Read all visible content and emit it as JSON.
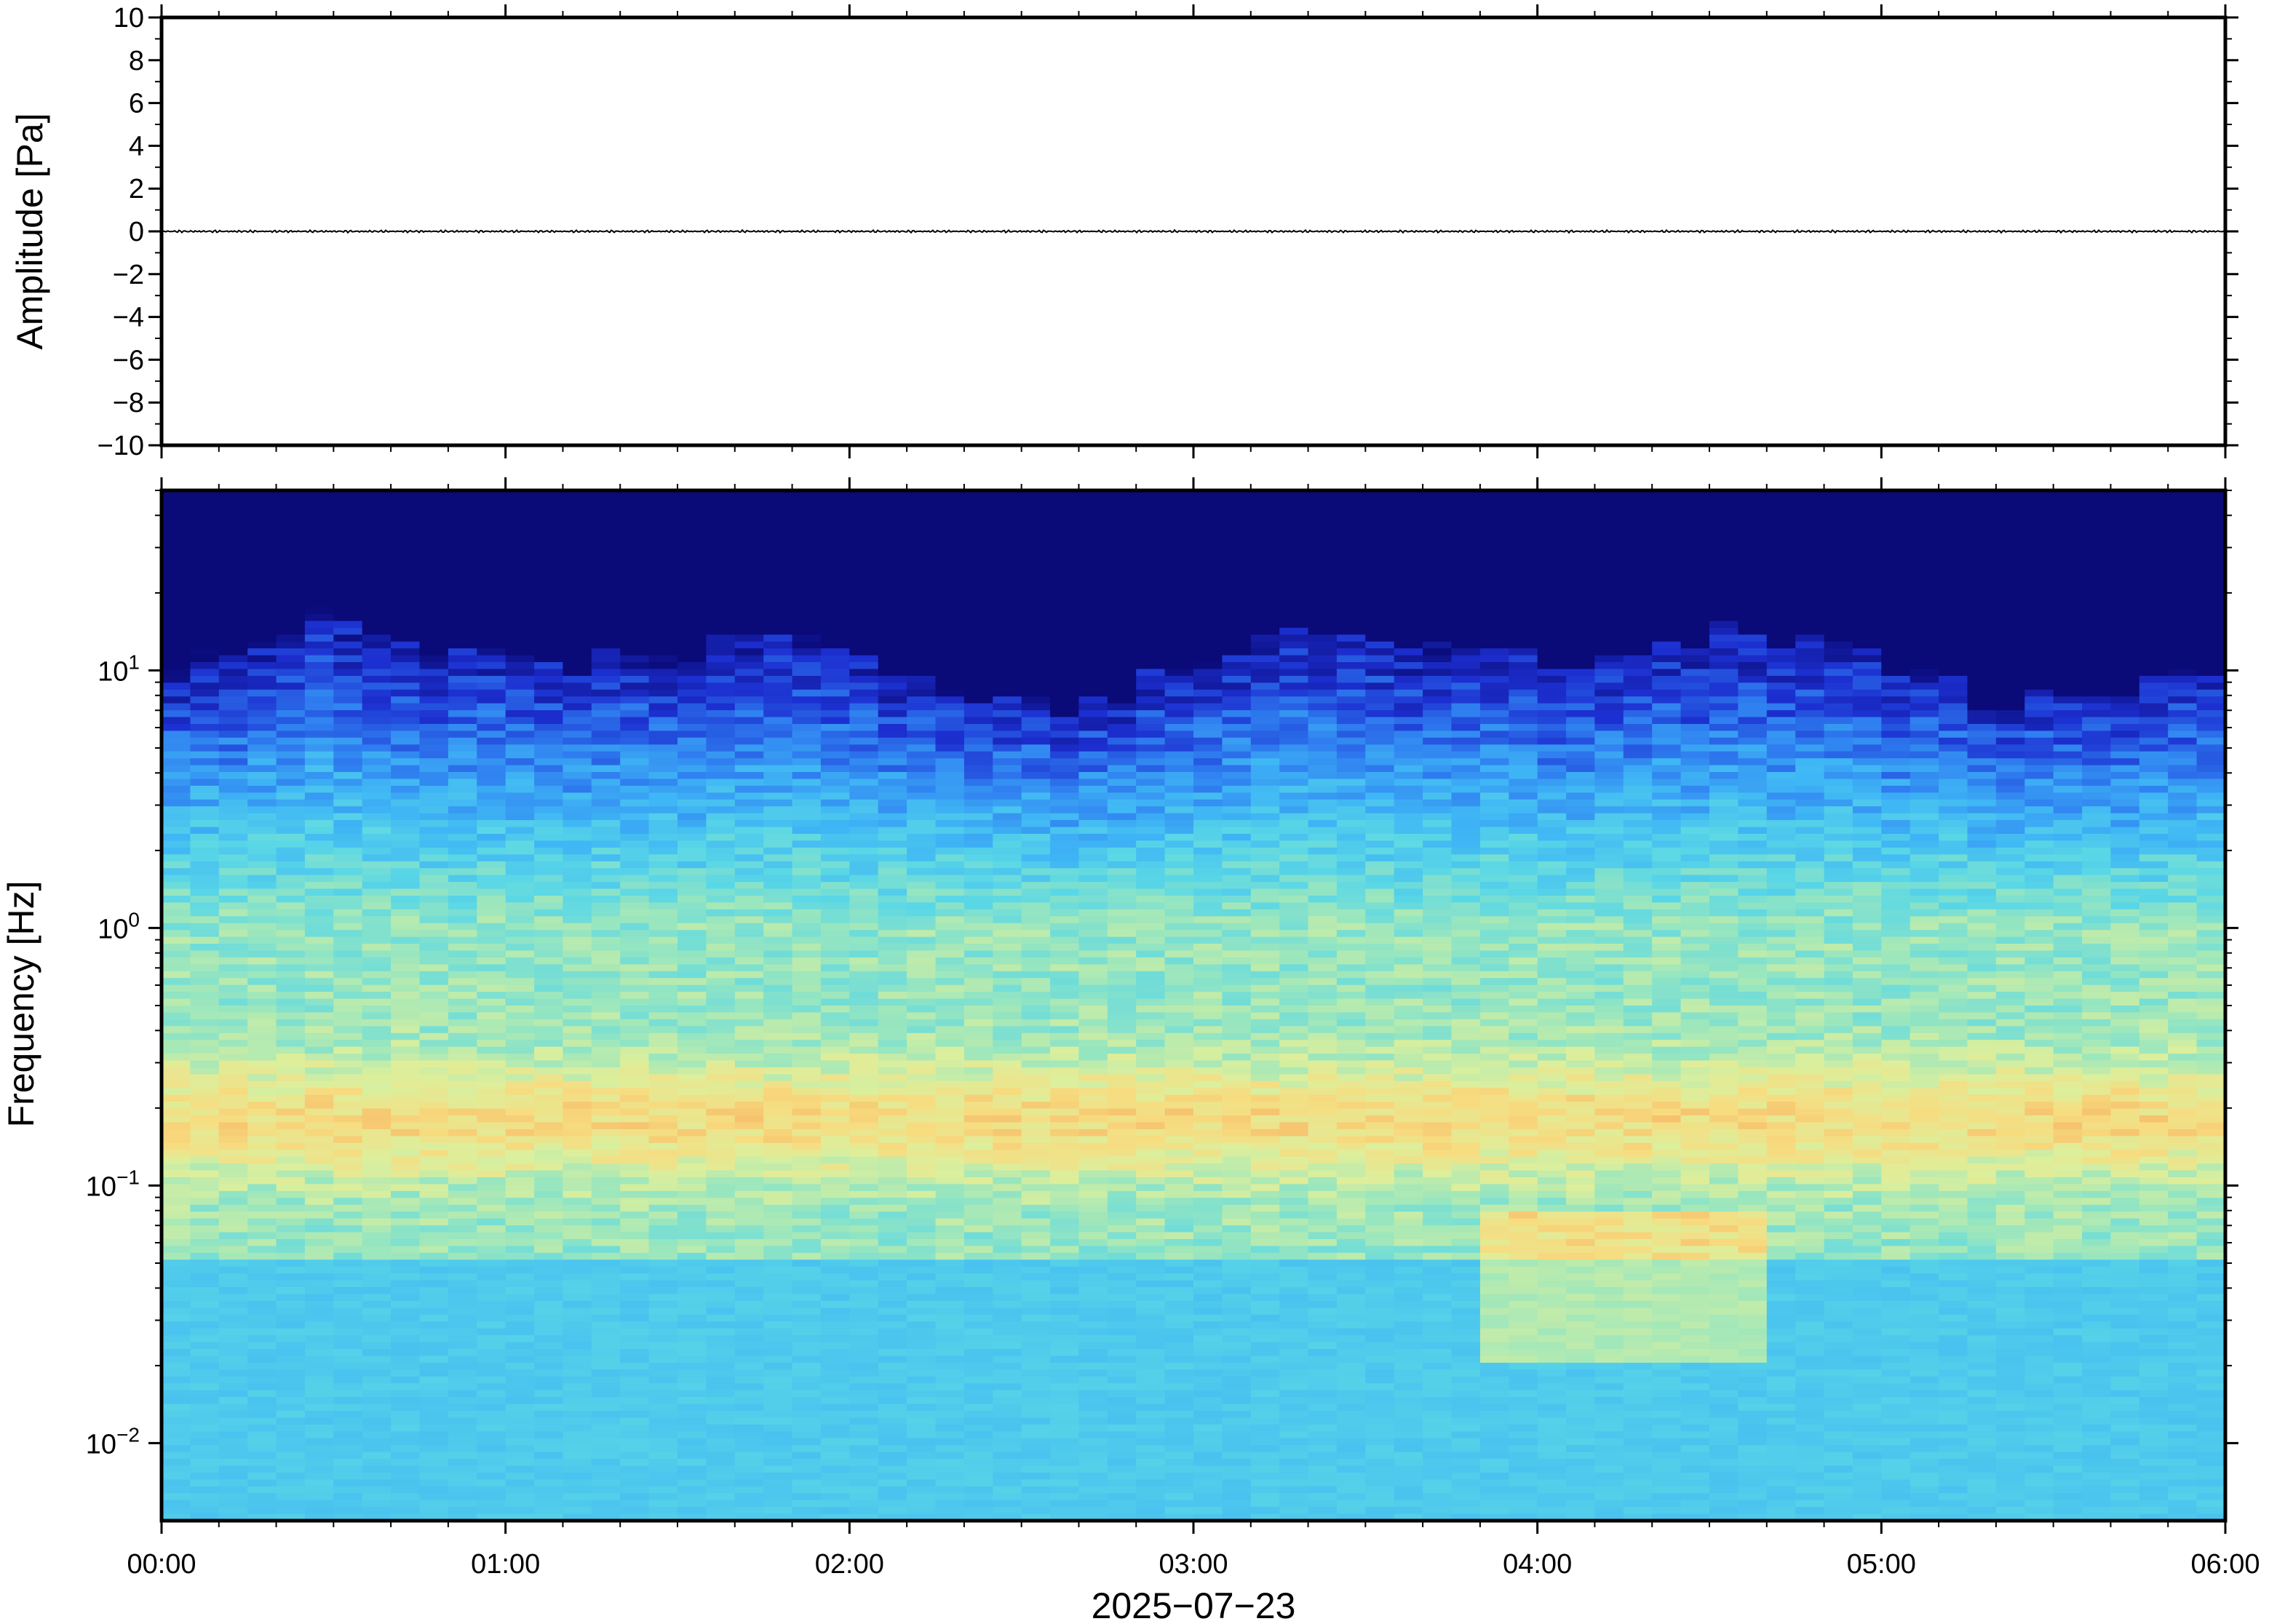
{
  "chart_data": [
    {
      "type": "line",
      "ylabel": "Amplitude [Pa]",
      "ylim": [
        -10,
        10
      ],
      "y_ticks": [
        10,
        8,
        6,
        4,
        2,
        0,
        -2,
        -4,
        -6,
        -8,
        -10
      ],
      "y_tick_labels": [
        "10",
        "8",
        "6",
        "4",
        "2",
        "0",
        "−2",
        "−4",
        "−6",
        "−8",
        "−10"
      ],
      "series": [
        {
          "color": "#000000",
          "x": [
            "00:00",
            "06:00"
          ],
          "values": [
            0,
            0
          ]
        }
      ],
      "grid": false
    },
    {
      "type": "heatmap",
      "ylabel": "Frequency [Hz]",
      "y_scale": "log",
      "ylim": [
        0.005,
        50
      ],
      "y_ticks": [
        0.01,
        0.1,
        1,
        10
      ],
      "y_tick_labels": [
        {
          "base": "10",
          "exp": "−2"
        },
        {
          "base": "10",
          "exp": "−1"
        },
        {
          "base": "10",
          "exp": "0"
        },
        {
          "base": "10",
          "exp": "1"
        }
      ],
      "x_ticks": [
        "00:00",
        "01:00",
        "02:00",
        "03:00",
        "04:00",
        "05:00",
        "06:00"
      ],
      "xlabel": "2025−07−23",
      "colormap": [
        "#0a0a78",
        "#1c2fd0",
        "#2f7ef0",
        "#3fb6f5",
        "#5ad7e6",
        "#98e6bf",
        "#dcef9c",
        "#f7dc80",
        "#f5b060"
      ],
      "peak_band_hz": 0.18,
      "grid": false
    }
  ]
}
